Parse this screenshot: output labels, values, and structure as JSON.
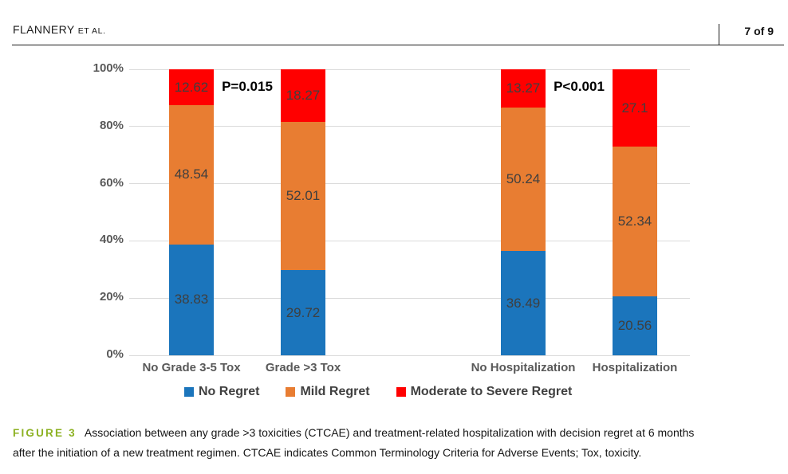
{
  "header": {
    "authors": "FLANNERY",
    "authors_suffix": "ET AL.",
    "page_number": "7 of 9"
  },
  "chart_data": {
    "type": "bar",
    "stacked": true,
    "grid": true,
    "legend_position": "bottom",
    "categories": [
      "No Grade 3-5 Tox",
      "Grade >3 Tox",
      "No Hospitalization",
      "Hospitalization"
    ],
    "series": [
      {
        "name": "No Regret",
        "color": "#1b75bc",
        "values": [
          38.83,
          29.72,
          36.49,
          20.56
        ]
      },
      {
        "name": "Mild Regret",
        "color": "#e87d32",
        "values": [
          48.54,
          52.01,
          50.24,
          52.34
        ]
      },
      {
        "name": "Moderate to Severe Regret",
        "color": "#ff0000",
        "values": [
          12.62,
          18.27,
          13.27,
          27.1
        ]
      }
    ],
    "annotations": [
      {
        "text": "P=0.015",
        "between": [
          0,
          1
        ]
      },
      {
        "text": "P<0.001",
        "between": [
          2,
          3
        ]
      }
    ],
    "y_axis": {
      "min": 0,
      "max": 100,
      "ticks": [
        "0%",
        "20%",
        "40%",
        "60%",
        "80%",
        "100%"
      ]
    }
  },
  "caption": {
    "label": "FIGURE 3",
    "line1": "Association between any grade >3 toxicities (CTCAE) and treatment-related hospitalization with decision regret at 6 months",
    "line2": "after the initiation of a new treatment regimen. CTCAE indicates Common Terminology Criteria for Adverse Events; Tox, toxicity."
  }
}
